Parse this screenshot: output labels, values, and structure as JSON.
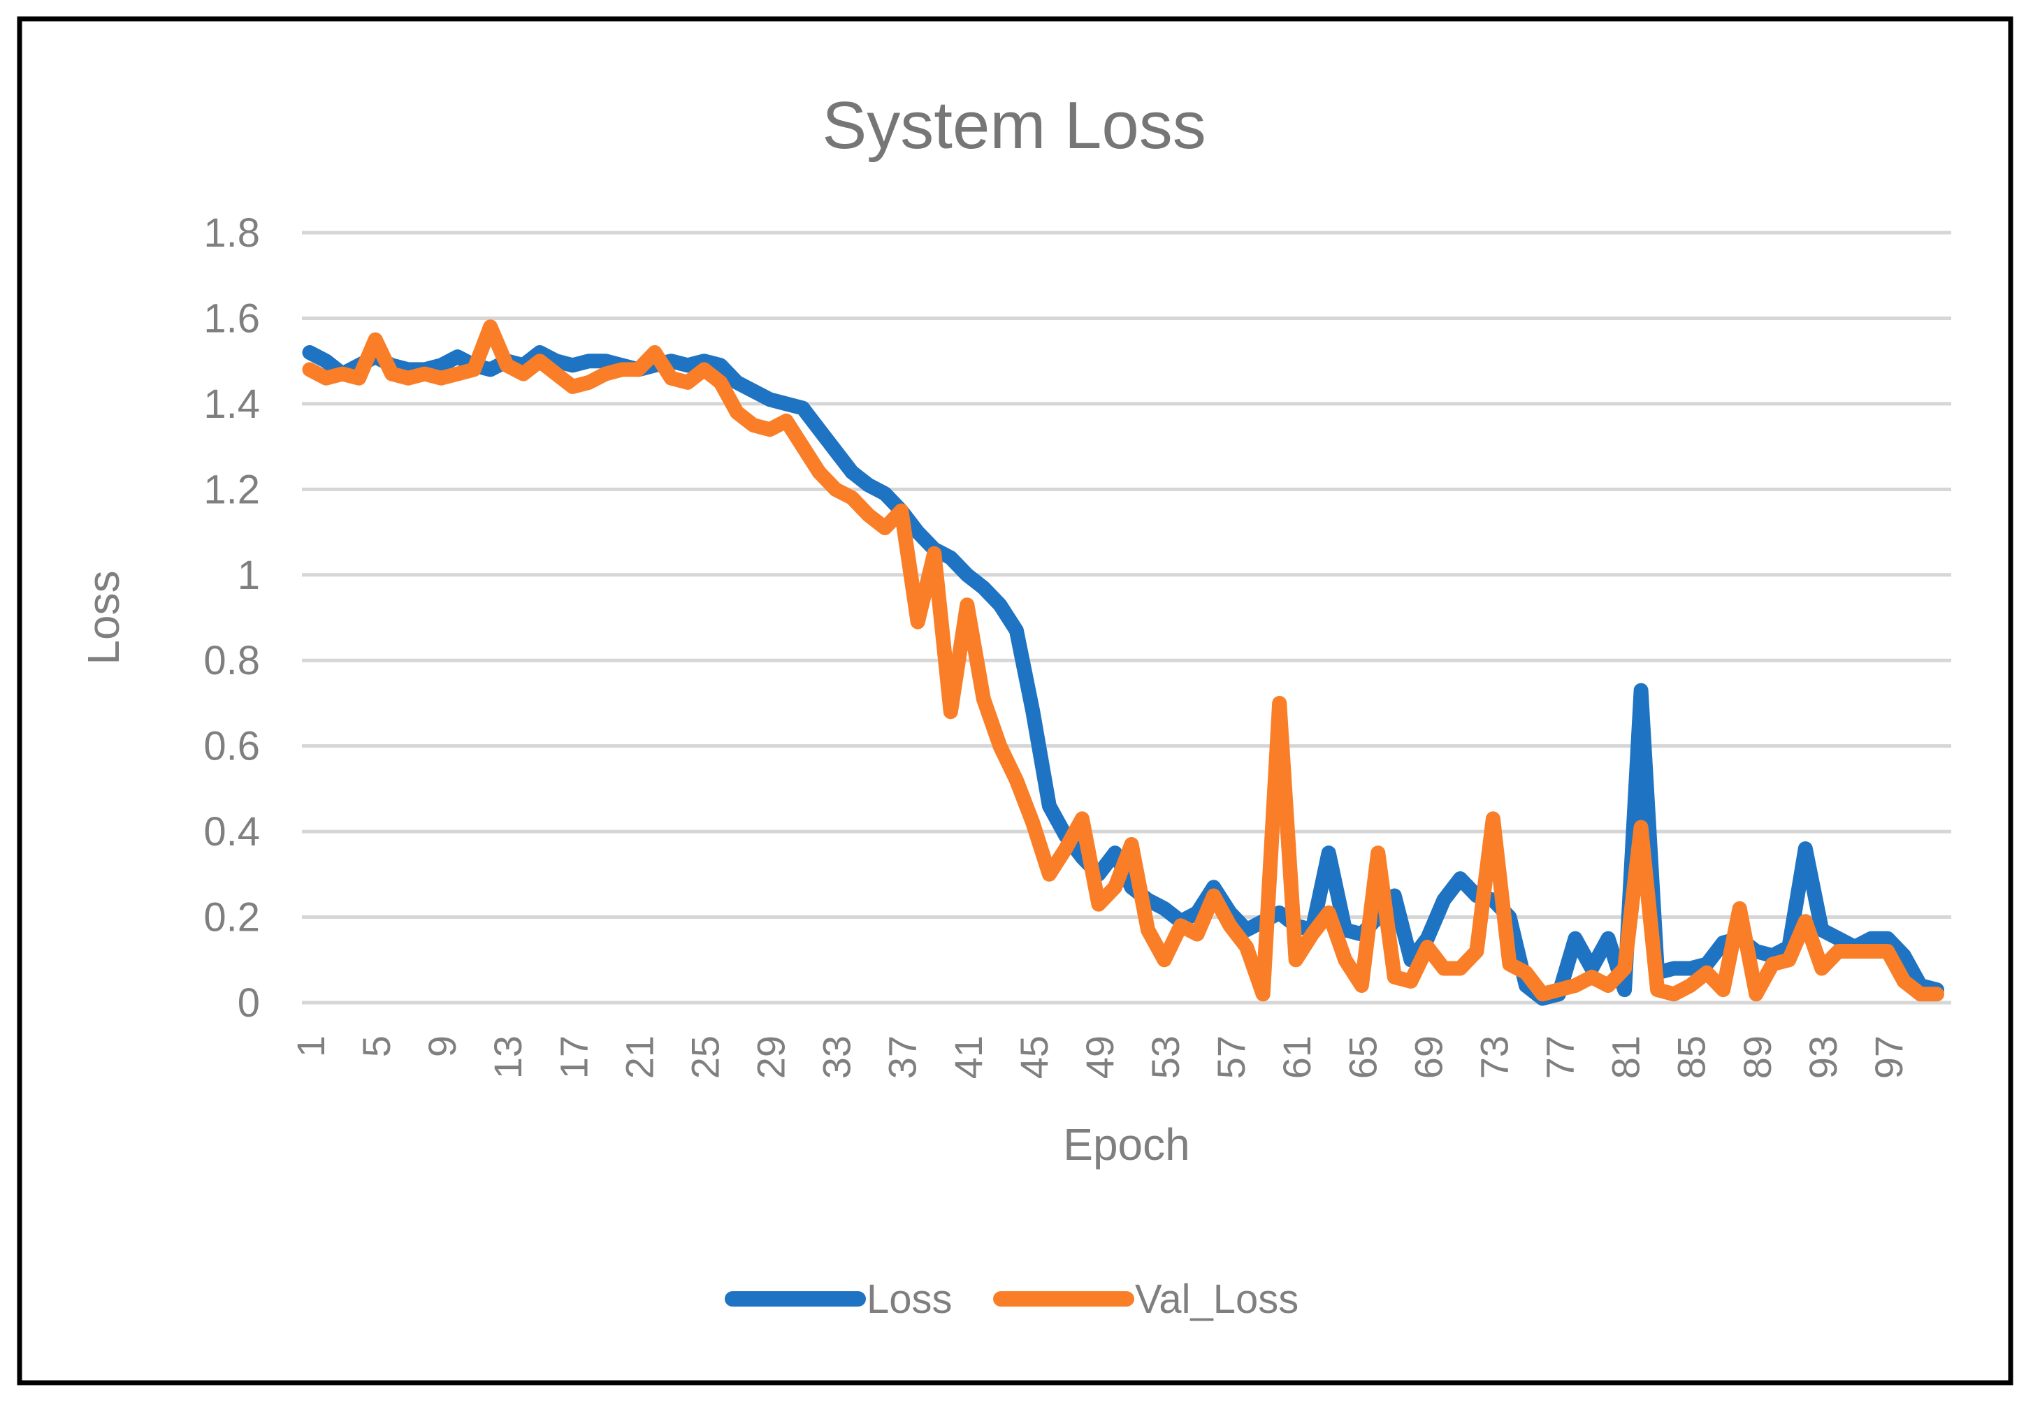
{
  "chart_data": {
    "type": "line",
    "title": "System Loss",
    "xlabel": "Epoch",
    "ylabel": "Loss",
    "ylim": [
      0,
      1.8
    ],
    "ytick_step": 0.2,
    "ytick_labels": [
      "0",
      "0.2",
      "0.4",
      "0.6",
      "0.8",
      "1",
      "1.2",
      "1.4",
      "1.6",
      "1.8"
    ],
    "xticks": [
      1,
      5,
      9,
      13,
      17,
      21,
      25,
      29,
      33,
      37,
      41,
      45,
      49,
      53,
      57,
      61,
      65,
      69,
      73,
      77,
      81,
      85,
      89,
      93,
      97
    ],
    "x_range": [
      1,
      100
    ],
    "grid": "horizontal",
    "legend_position": "bottom",
    "colors": {
      "loss_line": "#1E73C2",
      "val_loss_line": "#F97E27",
      "gridline": "#D6D6D6",
      "title_text": "#767676",
      "axis_text": "#7F7F7F",
      "frame": "#000000",
      "background": "#FFFFFF"
    },
    "x": [
      1,
      2,
      3,
      4,
      5,
      6,
      7,
      8,
      9,
      10,
      11,
      12,
      13,
      14,
      15,
      16,
      17,
      18,
      19,
      20,
      21,
      22,
      23,
      24,
      25,
      26,
      27,
      28,
      29,
      30,
      31,
      32,
      33,
      34,
      35,
      36,
      37,
      38,
      39,
      40,
      41,
      42,
      43,
      44,
      45,
      46,
      47,
      48,
      49,
      50,
      51,
      52,
      53,
      54,
      55,
      56,
      57,
      58,
      59,
      60,
      61,
      62,
      63,
      64,
      65,
      66,
      67,
      68,
      69,
      70,
      71,
      72,
      73,
      74,
      75,
      76,
      77,
      78,
      79,
      80,
      81,
      82,
      83,
      84,
      85,
      86,
      87,
      88,
      89,
      90,
      91,
      92,
      93,
      94,
      95,
      96,
      97,
      98,
      99,
      100
    ],
    "series": [
      {
        "name": "Loss",
        "color": "#1E73C2",
        "values": [
          1.52,
          1.5,
          1.47,
          1.49,
          1.51,
          1.49,
          1.48,
          1.48,
          1.49,
          1.51,
          1.49,
          1.48,
          1.5,
          1.49,
          1.52,
          1.5,
          1.49,
          1.5,
          1.5,
          1.49,
          1.48,
          1.49,
          1.5,
          1.49,
          1.5,
          1.49,
          1.45,
          1.43,
          1.41,
          1.4,
          1.39,
          1.34,
          1.29,
          1.24,
          1.21,
          1.19,
          1.15,
          1.1,
          1.06,
          1.04,
          1.0,
          0.97,
          0.93,
          0.87,
          0.68,
          0.46,
          0.39,
          0.34,
          0.3,
          0.35,
          0.27,
          0.24,
          0.22,
          0.19,
          0.21,
          0.27,
          0.21,
          0.17,
          0.19,
          0.21,
          0.18,
          0.17,
          0.35,
          0.17,
          0.16,
          0.2,
          0.25,
          0.1,
          0.15,
          0.24,
          0.29,
          0.25,
          0.24,
          0.2,
          0.04,
          0.01,
          0.02,
          0.15,
          0.08,
          0.15,
          0.03,
          0.73,
          0.07,
          0.08,
          0.08,
          0.09,
          0.14,
          0.15,
          0.12,
          0.11,
          0.13,
          0.36,
          0.17,
          0.15,
          0.13,
          0.15,
          0.15,
          0.11,
          0.04,
          0.03
        ]
      },
      {
        "name": "Val_Loss",
        "color": "#F97E27",
        "values": [
          1.48,
          1.46,
          1.47,
          1.46,
          1.55,
          1.47,
          1.46,
          1.47,
          1.46,
          1.47,
          1.48,
          1.58,
          1.49,
          1.47,
          1.5,
          1.47,
          1.44,
          1.45,
          1.47,
          1.48,
          1.48,
          1.52,
          1.46,
          1.45,
          1.48,
          1.45,
          1.38,
          1.35,
          1.34,
          1.36,
          1.3,
          1.24,
          1.2,
          1.18,
          1.14,
          1.11,
          1.15,
          0.89,
          1.05,
          0.68,
          0.93,
          0.71,
          0.6,
          0.52,
          0.42,
          0.3,
          0.36,
          0.43,
          0.23,
          0.27,
          0.37,
          0.17,
          0.1,
          0.18,
          0.16,
          0.25,
          0.18,
          0.13,
          0.02,
          0.7,
          0.1,
          0.16,
          0.21,
          0.1,
          0.04,
          0.35,
          0.06,
          0.05,
          0.13,
          0.08,
          0.08,
          0.12,
          0.43,
          0.09,
          0.07,
          0.02,
          0.03,
          0.04,
          0.06,
          0.04,
          0.08,
          0.41,
          0.03,
          0.02,
          0.04,
          0.07,
          0.03,
          0.22,
          0.02,
          0.09,
          0.1,
          0.19,
          0.08,
          0.12,
          0.12,
          0.12,
          0.12,
          0.05,
          0.02,
          0.02
        ]
      }
    ]
  }
}
